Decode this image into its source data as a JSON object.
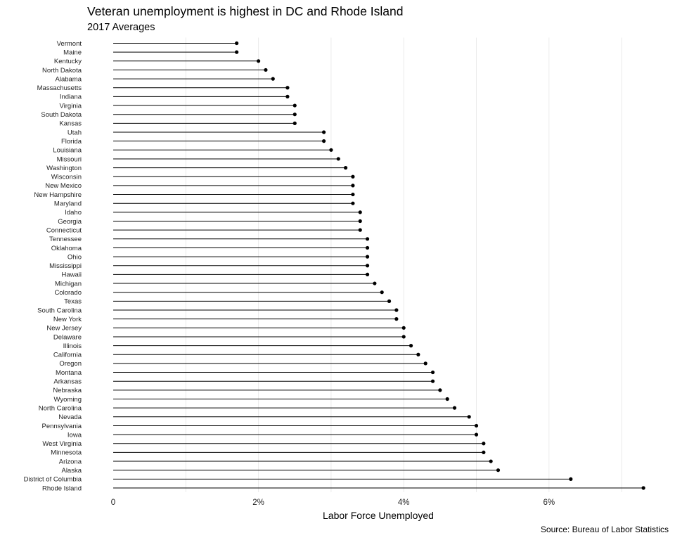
{
  "title": "Veteran unemployment is highest in DC and Rhode Island",
  "subtitle": "2017 Averages",
  "source": "Source: Bureau of Labor Statistics",
  "chart_data": {
    "type": "lollipop",
    "title": "Veteran unemployment is highest in DC and Rhode Island",
    "subtitle": "2017 Averages",
    "xlabel": "Labor Force Unemployed",
    "ylabel": "",
    "xlim": [
      0,
      0.073
    ],
    "xticks": [
      0,
      0.02,
      0.04,
      0.06
    ],
    "xtick_labels": [
      "0",
      "2%",
      "4%",
      "6%"
    ],
    "grid": "vertical, light",
    "categories": [
      "Vermont",
      "Maine",
      "Kentucky",
      "North Dakota",
      "Alabama",
      "Massachusetts",
      "Indiana",
      "Virginia",
      "South Dakota",
      "Kansas",
      "Utah",
      "Florida",
      "Louisiana",
      "Missouri",
      "Washington",
      "Wisconsin",
      "New Mexico",
      "New Hampshire",
      "Maryland",
      "Idaho",
      "Georgia",
      "Connecticut",
      "Tennessee",
      "Oklahoma",
      "Ohio",
      "Mississippi",
      "Hawaii",
      "Michigan",
      "Colorado",
      "Texas",
      "South Carolina",
      "New York",
      "New Jersey",
      "Delaware",
      "Illinois",
      "California",
      "Oregon",
      "Montana",
      "Arkansas",
      "Nebraska",
      "Wyoming",
      "North Carolina",
      "Nevada",
      "Pennsylvania",
      "Iowa",
      "West Virginia",
      "Minnesota",
      "Arizona",
      "Alaska",
      "District of Columbia",
      "Rhode Island"
    ],
    "values": [
      0.017,
      0.017,
      0.02,
      0.021,
      0.022,
      0.024,
      0.024,
      0.025,
      0.025,
      0.025,
      0.029,
      0.029,
      0.03,
      0.031,
      0.032,
      0.033,
      0.033,
      0.033,
      0.033,
      0.034,
      0.034,
      0.034,
      0.035,
      0.035,
      0.035,
      0.035,
      0.035,
      0.036,
      0.037,
      0.038,
      0.039,
      0.039,
      0.04,
      0.04,
      0.041,
      0.042,
      0.043,
      0.044,
      0.044,
      0.045,
      0.046,
      0.047,
      0.049,
      0.05,
      0.05,
      0.051,
      0.051,
      0.052,
      0.053,
      0.063,
      0.073
    ],
    "source": "Source: Bureau of Labor Statistics"
  }
}
